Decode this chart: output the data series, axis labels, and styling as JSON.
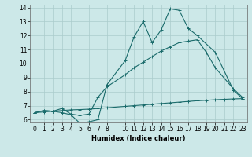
{
  "xlabel": "Humidex (Indice chaleur)",
  "xlim": [
    -0.5,
    23.5
  ],
  "ylim": [
    5.8,
    14.2
  ],
  "xticks": [
    0,
    1,
    2,
    3,
    4,
    5,
    6,
    7,
    8,
    10,
    11,
    12,
    13,
    14,
    15,
    16,
    17,
    18,
    19,
    20,
    21,
    22,
    23
  ],
  "yticks": [
    6,
    7,
    8,
    9,
    10,
    11,
    12,
    13,
    14
  ],
  "bg_color": "#cce8e8",
  "grid_color": "#aacccc",
  "line_color": "#1a6b6b",
  "line1_x": [
    0,
    1,
    2,
    3,
    4,
    5,
    6,
    7,
    8,
    10,
    11,
    12,
    13,
    14,
    15,
    16,
    17,
    18,
    20,
    22,
    23
  ],
  "line1_y": [
    6.5,
    6.65,
    6.6,
    6.5,
    6.35,
    5.75,
    5.85,
    6.0,
    8.5,
    10.2,
    11.9,
    13.0,
    11.5,
    12.4,
    13.9,
    13.8,
    12.5,
    12.0,
    10.8,
    8.1,
    7.5
  ],
  "line2_x": [
    0,
    1,
    2,
    3,
    4,
    5,
    6,
    7,
    8,
    10,
    11,
    12,
    13,
    14,
    15,
    16,
    17,
    18,
    19,
    20,
    22,
    23
  ],
  "line2_y": [
    6.5,
    6.65,
    6.6,
    6.8,
    6.4,
    6.3,
    6.4,
    7.6,
    8.35,
    9.2,
    9.7,
    10.1,
    10.5,
    10.9,
    11.2,
    11.5,
    11.6,
    11.7,
    10.8,
    9.7,
    8.2,
    7.6
  ],
  "line3_x": [
    0,
    1,
    2,
    3,
    4,
    5,
    6,
    7,
    8,
    10,
    11,
    12,
    13,
    14,
    15,
    16,
    17,
    18,
    19,
    20,
    21,
    22,
    23
  ],
  "line3_y": [
    6.5,
    6.55,
    6.6,
    6.65,
    6.7,
    6.72,
    6.75,
    6.8,
    6.85,
    6.95,
    7.0,
    7.05,
    7.1,
    7.15,
    7.2,
    7.25,
    7.3,
    7.35,
    7.38,
    7.42,
    7.45,
    7.48,
    7.5
  ],
  "marker": "+"
}
